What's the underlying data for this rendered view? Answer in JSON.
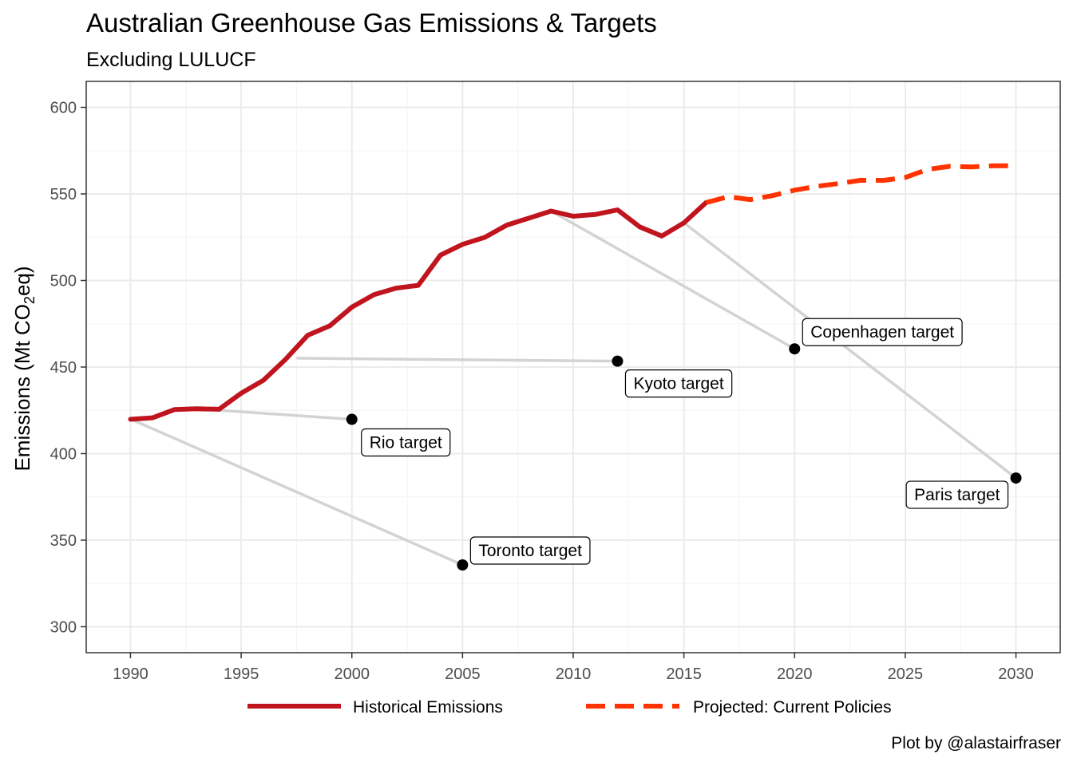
{
  "chart_data": {
    "type": "line",
    "title": "Australian Greenhouse Gas Emissions & Targets",
    "subtitle": "Excluding LULUCF",
    "ylabel": {
      "prefix": "Emissions (Mt CO",
      "sub": "2",
      "suffix": "eq)"
    },
    "xlabel": "",
    "xlim": [
      1988,
      2032
    ],
    "ylim": [
      285,
      615
    ],
    "x_ticks": [
      1990,
      1995,
      2000,
      2005,
      2010,
      2015,
      2020,
      2025,
      2030
    ],
    "y_ticks": [
      300,
      350,
      400,
      450,
      500,
      550,
      600
    ],
    "grid": true,
    "legend_position": "bottom",
    "colors": {
      "historical": "#c0141e",
      "projected": "#ff3300",
      "target_line": "#d3d3d3",
      "grid_major": "#ebebeb",
      "panel_border": "#333333"
    },
    "series": [
      {
        "name": "Historical Emissions",
        "style": "solid",
        "x": [
          1990,
          1991,
          1992,
          1993,
          1994,
          1995,
          1996,
          1997,
          1998,
          1999,
          2000,
          2001,
          2002,
          2003,
          2004,
          2005,
          2006,
          2007,
          2008,
          2009,
          2010,
          2011,
          2012,
          2013,
          2014,
          2015,
          2016
        ],
        "y": [
          419.8,
          420.7,
          425.5,
          425.9,
          425.6,
          434.9,
          442.3,
          454.4,
          468.3,
          473.8,
          484.6,
          491.8,
          495.6,
          497.2,
          514.6,
          520.9,
          524.9,
          532.0,
          536.0,
          540.1,
          537.1,
          538.1,
          540.8,
          531.0,
          525.7,
          533.3,
          545.0
        ]
      },
      {
        "name": "Projected: Current Policies",
        "style": "dashed",
        "x": [
          2016,
          2017,
          2018,
          2019,
          2020,
          2021,
          2022,
          2023,
          2024,
          2025,
          2026,
          2027,
          2028,
          2029,
          2030
        ],
        "y": [
          545.0,
          548.4,
          546.7,
          549.0,
          552.2,
          554.4,
          556.0,
          557.9,
          557.8,
          559.5,
          564.1,
          565.9,
          565.6,
          566.3,
          566.3
        ]
      }
    ],
    "targets": [
      {
        "label": "Toronto target",
        "from": [
          1990,
          420.0
        ],
        "x": 2005,
        "y": 335.7
      },
      {
        "label": "Rio target",
        "from": [
          1993,
          425.9
        ],
        "x": 2000,
        "y": 419.8
      },
      {
        "label": "Kyoto target",
        "from": [
          1997.5,
          455.1
        ],
        "x": 2012,
        "y": 453.4
      },
      {
        "label": "Copenhagen target",
        "from": [
          2009,
          540.1
        ],
        "x": 2020,
        "y": 460.5
      },
      {
        "label": "Paris target",
        "from": [
          2015,
          533.3
        ],
        "x": 2030,
        "y": 385.9
      }
    ],
    "caption": "Plot by @alastairfraser"
  }
}
